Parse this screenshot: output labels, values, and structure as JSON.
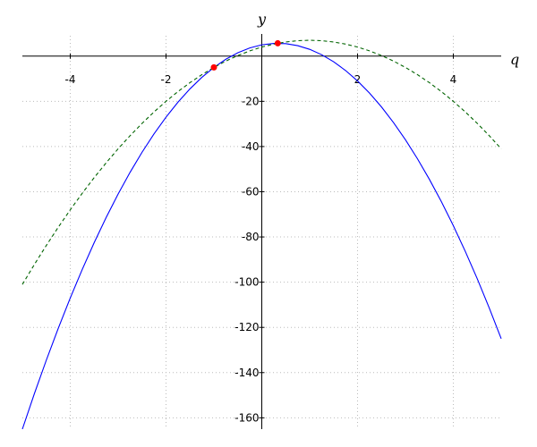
{
  "chart_data": {
    "type": "line",
    "x_label": "q",
    "y_label": "y",
    "xlim": [
      -5,
      5
    ],
    "ylim": [
      -165,
      9
    ],
    "xticks": [
      -4,
      -2,
      2,
      4
    ],
    "yticks": [
      -160,
      -140,
      -120,
      -100,
      -80,
      -60,
      -40,
      -20
    ],
    "grid": true,
    "x": [
      -5,
      -4.75,
      -4.5,
      -4.25,
      -4,
      -3.75,
      -3.5,
      -3.25,
      -3,
      -2.75,
      -2.5,
      -2.25,
      -2,
      -1.75,
      -1.5,
      -1.25,
      -1,
      -0.75,
      -0.5,
      -0.25,
      0,
      0.25,
      0.5,
      0.75,
      1,
      1.25,
      1.5,
      1.75,
      2,
      2.25,
      2.5,
      2.75,
      3,
      3.25,
      3.5,
      3.75,
      4,
      4.25,
      4.5,
      4.75,
      5
    ],
    "series": [
      {
        "color": "#0000ff",
        "dash": false,
        "values": [
          -165,
          -149.375,
          -134.5,
          -120.375,
          -107,
          -94.375,
          -82.5,
          -71.375,
          -61,
          -51.375,
          -42.5,
          -34.375,
          -27,
          -20.375,
          -14.5,
          -9.375,
          -5,
          -1.375,
          1.5,
          3.625,
          5,
          5.625,
          5.5,
          4.625,
          3,
          0.625,
          -2.5,
          -6.375,
          -11,
          -16.375,
          -22.5,
          -29.375,
          -37,
          -45.375,
          -54.5,
          -64.375,
          -75,
          -86.375,
          -98.5,
          -111.375,
          -125
        ]
      },
      {
        "color": "#006400",
        "dash": true,
        "values": [
          -101,
          -92.1875,
          -83.75,
          -75.6875,
          -68,
          -60.6875,
          -53.75,
          -47.1875,
          -41,
          -35.1875,
          -29.75,
          -24.6875,
          -20,
          -15.6875,
          -11.75,
          -8.1875,
          -5,
          -2.1875,
          0.25,
          2.3125,
          4,
          5.3125,
          6.25,
          6.8125,
          7,
          6.8125,
          6.25,
          5.3125,
          4,
          2.3125,
          0.25,
          -2.1875,
          -5,
          -8.1875,
          -11.75,
          -15.6875,
          -20,
          -24.6875,
          -29.75,
          -35.1875,
          -41
        ]
      }
    ],
    "points": {
      "color": "#ff0000",
      "x": [
        -1,
        0.3333
      ],
      "y": [
        -5,
        5.6667
      ]
    }
  }
}
